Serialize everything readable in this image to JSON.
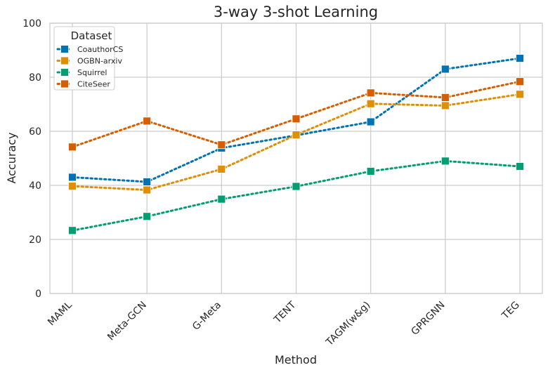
{
  "chart_data": {
    "type": "line",
    "title": "3-way 3-shot Learning",
    "xlabel": "Method",
    "ylabel": "Accuracy",
    "categories": [
      "MAML",
      "Meta-GCN",
      "G-Meta",
      "TENT",
      "TAGM(w&g)",
      "GPRGNN",
      "TEG"
    ],
    "ylim": [
      0,
      100
    ],
    "yticks": [
      0,
      20,
      40,
      60,
      80,
      100
    ],
    "grid": true,
    "legend": {
      "title": "Dataset",
      "position": "top-left"
    },
    "line_style": "dotted",
    "marker": "square",
    "series": [
      {
        "name": "CoauthorCS",
        "color": "#0173b2",
        "values": [
          43.0,
          41.3,
          53.8,
          58.5,
          63.5,
          83.0,
          87.0
        ]
      },
      {
        "name": "OGBN-arxiv",
        "color": "#de8f05",
        "values": [
          39.7,
          38.3,
          46.0,
          58.7,
          70.2,
          69.5,
          73.7
        ]
      },
      {
        "name": "Squirrel",
        "color": "#029e73",
        "values": [
          23.3,
          28.5,
          34.9,
          39.6,
          45.2,
          49.0,
          47.0
        ]
      },
      {
        "name": "CiteSeer",
        "color": "#d55e00",
        "values": [
          54.2,
          63.8,
          55.0,
          64.6,
          74.2,
          72.5,
          78.4
        ]
      }
    ]
  }
}
